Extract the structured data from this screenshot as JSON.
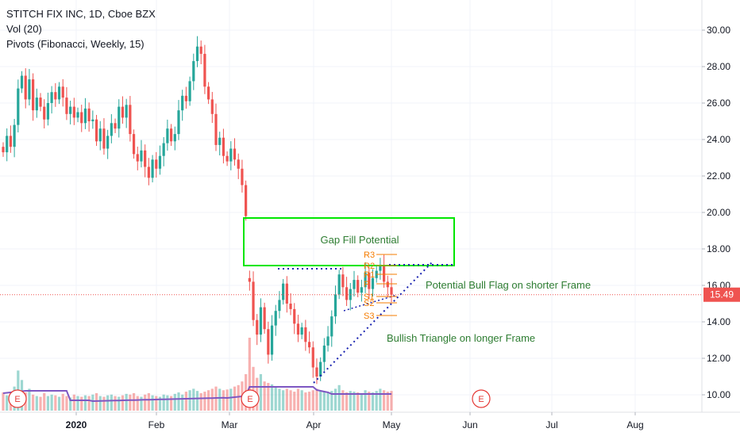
{
  "legend": {
    "symbol": "STITCH FIX INC, 1D, Cboe BZX",
    "volume": "Vol (20)",
    "pivots": "Pivots (Fibonacci, Weekly, 15)"
  },
  "price_tag": "15.49",
  "colors": {
    "up": "#26a69a",
    "down": "#ef5350",
    "pivot": "#f57c00",
    "volume_ma": "#7e57c2",
    "annotation_green": "#00e600",
    "annotation_text": "#2e7d32",
    "trendline": "#1a23b0",
    "earnings": "#e53935"
  },
  "chart_data": {
    "type": "candlestick",
    "ylim": [
      9.3,
      32.0
    ],
    "y_ticks": [
      "10.00",
      "12.00",
      "14.00",
      "16.00",
      "18.00",
      "20.00",
      "22.00",
      "24.00",
      "26.00",
      "28.00",
      "30.00"
    ],
    "x_ticks": [
      "2020",
      "Feb",
      "Mar",
      "Apr",
      "May",
      "Jun",
      "Jul",
      "Aug"
    ],
    "last_price": 15.49,
    "pivots": [
      "R3",
      "R2",
      "R1",
      "P",
      "S1",
      "S2",
      "S3"
    ],
    "annotations": {
      "gap_fill": "Gap Fill Potential",
      "bull_flag": "Potential Bull Flag on shorter Frame",
      "triangle": "Bullish Triangle on longer Frame"
    },
    "earnings_marker": "E",
    "closes": [
      23.3,
      24.2,
      23.6,
      24.8,
      26.8,
      27.5,
      26.2,
      27.3,
      25.6,
      26.3,
      25.8,
      25.1,
      26.0,
      26.6,
      26.2,
      26.9,
      26.3,
      25.4,
      25.8,
      25.2,
      25.5,
      24.9,
      25.7,
      25.0,
      25.1,
      23.9,
      24.6,
      23.5,
      24.2,
      24.9,
      24.6,
      25.8,
      25.2,
      25.9,
      24.3,
      23.2,
      22.8,
      23.4,
      22.5,
      21.9,
      22.9,
      22.4,
      23.1,
      23.8,
      24.6,
      23.9,
      24.3,
      25.6,
      26.4,
      26.1,
      27.2,
      28.3,
      29.1,
      28.7,
      26.9,
      26.2,
      25.4,
      23.7,
      24.1,
      23.1,
      22.8,
      23.5,
      22.9,
      22.4,
      21.5,
      19.8,
      16.2,
      14.1,
      13.3,
      14.8,
      13.6,
      12.2,
      13.8,
      14.6,
      15.2,
      16.1,
      15.0,
      14.7,
      13.9,
      13.3,
      13.7,
      12.9,
      12.6,
      11.5,
      11.0,
      11.8,
      12.7,
      13.2,
      14.3,
      15.5,
      16.6,
      15.9,
      15.2,
      15.8,
      16.3,
      15.6,
      15.9,
      16.7,
      15.8,
      16.4,
      16.8,
      17.1,
      16.2,
      15.9,
      15.49
    ],
    "volumes": [
      0.25,
      0.21,
      0.18,
      0.33,
      0.55,
      0.42,
      0.25,
      0.3,
      0.22,
      0.2,
      0.19,
      0.24,
      0.2,
      0.22,
      0.21,
      0.19,
      0.23,
      0.2,
      0.18,
      0.22,
      0.2,
      0.19,
      0.21,
      0.2,
      0.22,
      0.24,
      0.2,
      0.19,
      0.21,
      0.22,
      0.2,
      0.19,
      0.21,
      0.23,
      0.22,
      0.24,
      0.2,
      0.19,
      0.22,
      0.24,
      0.21,
      0.2,
      0.19,
      0.22,
      0.21,
      0.2,
      0.23,
      0.25,
      0.22,
      0.26,
      0.28,
      0.3,
      0.27,
      0.24,
      0.26,
      0.28,
      0.3,
      0.33,
      0.3,
      0.28,
      0.29,
      0.3,
      0.33,
      0.35,
      0.4,
      0.5,
      1.0,
      0.6,
      0.45,
      0.5,
      0.4,
      0.38,
      0.36,
      0.32,
      0.3,
      0.28,
      0.3,
      0.28,
      0.26,
      0.3,
      0.28,
      0.25,
      0.26,
      0.28,
      0.3,
      0.27,
      0.26,
      0.24,
      0.27,
      0.3,
      0.35,
      0.28,
      0.25,
      0.27,
      0.26,
      0.25,
      0.24,
      0.28,
      0.26,
      0.25,
      0.27,
      0.3,
      0.28,
      0.26,
      0.27
    ]
  }
}
